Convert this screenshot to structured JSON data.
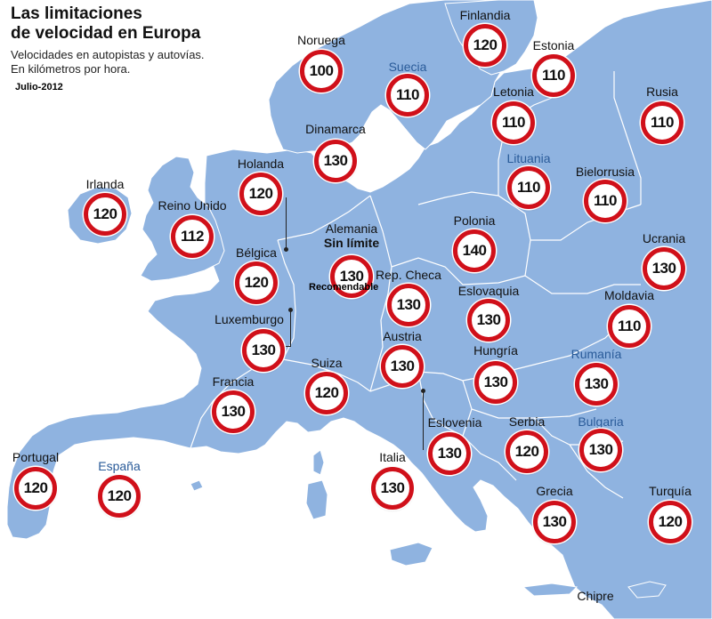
{
  "title_line1": "Las limitaciones",
  "title_line2": "de velocidad en Europa",
  "subtitle_line1": "Velocidades en autopistas y autovías.",
  "subtitle_line2": "En kilómetros por hora.",
  "date": "Julio-2012",
  "sign_ring_color": "#d0101a",
  "land_color": "#8fb3e0",
  "sea_color": "#ffffff",
  "countries": {
    "noruega": {
      "name": "Noruega",
      "speed": "100"
    },
    "suecia": {
      "name": "Suecia",
      "speed": "110"
    },
    "finlandia": {
      "name": "Finlandia",
      "speed": "120"
    },
    "estonia": {
      "name": "Estonia",
      "speed": "110"
    },
    "letonia": {
      "name": "Letonia",
      "speed": "110"
    },
    "rusia": {
      "name": "Rusia",
      "speed": "110"
    },
    "dinamarca": {
      "name": "Dinamarca",
      "speed": "130"
    },
    "lituania": {
      "name": "Lituania",
      "speed": "110"
    },
    "bielorrusia": {
      "name": "Bielorrusia",
      "speed": "110"
    },
    "holanda": {
      "name": "Holanda",
      "speed": "120"
    },
    "irlanda": {
      "name": "Irlanda",
      "speed": "120"
    },
    "reino_unido": {
      "name": "Reino Unido",
      "speed": "112"
    },
    "alemania": {
      "name": "Alemania",
      "sub": "Sin límite",
      "speed": "130",
      "note": "Recomendable"
    },
    "polonia": {
      "name": "Polonia",
      "speed": "140"
    },
    "ucrania": {
      "name": "Ucrania",
      "speed": "130"
    },
    "belgica": {
      "name": "Bélgica",
      "speed": "120"
    },
    "rep_checa": {
      "name": "Rep. Checa",
      "speed": "130"
    },
    "eslovaquia": {
      "name": "Eslovaquia",
      "speed": "130"
    },
    "moldavia": {
      "name": "Moldavia",
      "speed": "110"
    },
    "luxemburgo": {
      "name": "Luxemburgo",
      "speed": "130"
    },
    "austria": {
      "name": "Austria",
      "speed": "130"
    },
    "hungria": {
      "name": "Hungría",
      "speed": "130"
    },
    "rumania": {
      "name": "Rumanía",
      "speed": "130"
    },
    "francia": {
      "name": "Francia",
      "speed": "130"
    },
    "suiza": {
      "name": "Suiza",
      "speed": "120"
    },
    "eslovenia": {
      "name": "Eslovenia",
      "speed": "130"
    },
    "serbia": {
      "name": "Serbia",
      "speed": "120"
    },
    "bulgaria": {
      "name": "Bulgaria",
      "speed": "130"
    },
    "portugal": {
      "name": "Portugal",
      "speed": "120"
    },
    "espana": {
      "name": "España",
      "speed": "120"
    },
    "italia": {
      "name": "Italia",
      "speed": "130"
    },
    "grecia": {
      "name": "Grecia",
      "speed": "130"
    },
    "turquia": {
      "name": "Turquía",
      "speed": "120"
    },
    "chipre": {
      "name": "Chipre"
    }
  }
}
